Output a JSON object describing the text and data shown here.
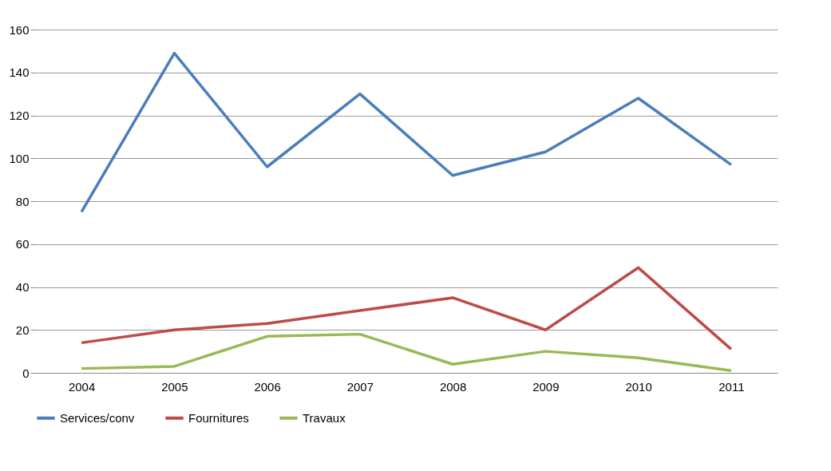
{
  "chart_data": {
    "type": "line",
    "categories": [
      "2004",
      "2005",
      "2006",
      "2007",
      "2008",
      "2009",
      "2010",
      "2011"
    ],
    "series": [
      {
        "name": "Services/conv",
        "color": "#4a7ebb",
        "values": [
          75,
          149,
          96,
          130,
          92,
          103,
          128,
          97
        ]
      },
      {
        "name": "Fournitures",
        "color": "#be4b48",
        "values": [
          14,
          20,
          23,
          29,
          35,
          20,
          49,
          11
        ]
      },
      {
        "name": "Travaux",
        "color": "#98b954",
        "values": [
          2,
          3,
          17,
          18,
          4,
          10,
          7,
          1
        ]
      }
    ],
    "ylim": [
      0,
      160
    ],
    "yticks": [
      0,
      20,
      40,
      60,
      80,
      100,
      120,
      140,
      160
    ],
    "grid": "y",
    "legend": "bottom",
    "marker": "none",
    "line_style": "solid"
  }
}
